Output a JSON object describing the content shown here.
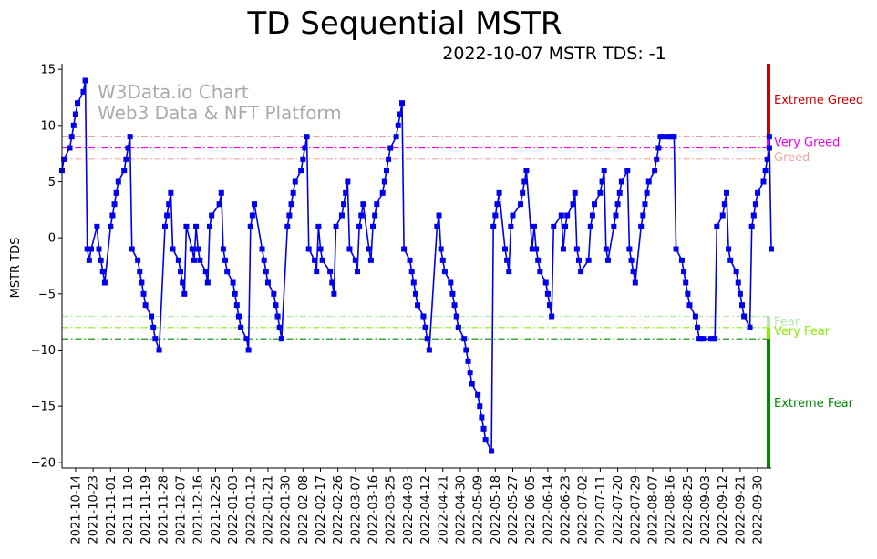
{
  "chart_data": {
    "type": "line",
    "title": "TD Sequential MSTR",
    "subtitle": "2022-10-07 MSTR TDS: -1",
    "ylabel": "MSTR TDS",
    "xlabel": "",
    "ylim": [
      -20.5,
      15.5
    ],
    "yticks": [
      15,
      10,
      5,
      0,
      -5,
      -10,
      -15,
      -20
    ],
    "ytick_labels": [
      "15",
      "10",
      "5",
      "0",
      "−5",
      "−10",
      "−15",
      "−20"
    ],
    "xlim": [
      "2021-10-07",
      "2022-10-07"
    ],
    "xtick_labels": [
      "2021-10-14",
      "2021-10-23",
      "2021-11-01",
      "2021-11-10",
      "2021-11-19",
      "2021-11-28",
      "2021-12-07",
      "2021-12-16",
      "2021-12-25",
      "2022-01-03",
      "2022-01-12",
      "2022-01-21",
      "2022-01-30",
      "2022-02-08",
      "2022-02-17",
      "2022-02-26",
      "2022-03-07",
      "2022-03-16",
      "2022-03-25",
      "2022-04-03",
      "2022-04-12",
      "2022-04-21",
      "2022-04-30",
      "2022-05-09",
      "2022-05-18",
      "2022-05-27",
      "2022-06-05",
      "2022-06-14",
      "2022-06-23",
      "2022-07-02",
      "2022-07-11",
      "2022-07-20",
      "2022-07-29",
      "2022-08-07",
      "2022-08-16",
      "2022-08-25",
      "2022-09-03",
      "2022-09-12",
      "2022-09-21",
      "2022-09-30"
    ],
    "watermark": [
      "W3Data.io Chart",
      "Web3 Data & NFT Platform"
    ],
    "grid": false,
    "series": [
      {
        "color": "#0000ee",
        "marker": "square",
        "points": [
          [
            "2021-10-07",
            6
          ],
          [
            "2021-10-08",
            7
          ],
          [
            "2021-10-11",
            8
          ],
          [
            "2021-10-12",
            9
          ],
          [
            "2021-10-13",
            10
          ],
          [
            "2021-10-14",
            11
          ],
          [
            "2021-10-15",
            12
          ],
          [
            "2021-10-18",
            13
          ],
          [
            "2021-10-19",
            14
          ],
          [
            "2021-10-20",
            -1
          ],
          [
            "2021-10-21",
            -2
          ],
          [
            "2021-10-22",
            -1
          ],
          [
            "2021-10-25",
            1
          ],
          [
            "2021-10-26",
            -1
          ],
          [
            "2021-10-27",
            -2
          ],
          [
            "2021-10-28",
            -3
          ],
          [
            "2021-10-29",
            -4
          ],
          [
            "2021-11-01",
            1
          ],
          [
            "2021-11-02",
            2
          ],
          [
            "2021-11-03",
            3
          ],
          [
            "2021-11-04",
            4
          ],
          [
            "2021-11-05",
            5
          ],
          [
            "2021-11-08",
            6
          ],
          [
            "2021-11-09",
            7
          ],
          [
            "2021-11-10",
            8
          ],
          [
            "2021-11-11",
            9
          ],
          [
            "2021-11-12",
            -1
          ],
          [
            "2021-11-15",
            -2
          ],
          [
            "2021-11-16",
            -3
          ],
          [
            "2021-11-17",
            -4
          ],
          [
            "2021-11-18",
            -5
          ],
          [
            "2021-11-19",
            -6
          ],
          [
            "2021-11-22",
            -7
          ],
          [
            "2021-11-23",
            -8
          ],
          [
            "2021-11-24",
            -9
          ],
          [
            "2021-11-26",
            -10
          ],
          [
            "2021-11-29",
            1
          ],
          [
            "2021-11-30",
            2
          ],
          [
            "2021-12-01",
            3
          ],
          [
            "2021-12-02",
            4
          ],
          [
            "2021-12-03",
            -1
          ],
          [
            "2021-12-06",
            -2
          ],
          [
            "2021-12-07",
            -3
          ],
          [
            "2021-12-08",
            -4
          ],
          [
            "2021-12-09",
            -5
          ],
          [
            "2021-12-10",
            1
          ],
          [
            "2021-12-13",
            -1
          ],
          [
            "2021-12-14",
            -2
          ],
          [
            "2021-12-15",
            1
          ],
          [
            "2021-12-16",
            -1
          ],
          [
            "2021-12-17",
            -2
          ],
          [
            "2021-12-20",
            -3
          ],
          [
            "2021-12-21",
            -4
          ],
          [
            "2021-12-22",
            1
          ],
          [
            "2021-12-23",
            2
          ],
          [
            "2021-12-27",
            3
          ],
          [
            "2021-12-28",
            4
          ],
          [
            "2021-12-29",
            -1
          ],
          [
            "2021-12-30",
            -2
          ],
          [
            "2021-12-31",
            -3
          ],
          [
            "2022-01-03",
            -4
          ],
          [
            "2022-01-04",
            -5
          ],
          [
            "2022-01-05",
            -6
          ],
          [
            "2022-01-06",
            -7
          ],
          [
            "2022-01-07",
            -8
          ],
          [
            "2022-01-10",
            -9
          ],
          [
            "2022-01-11",
            -10
          ],
          [
            "2022-01-12",
            1
          ],
          [
            "2022-01-13",
            2
          ],
          [
            "2022-01-14",
            3
          ],
          [
            "2022-01-18",
            -1
          ],
          [
            "2022-01-19",
            -2
          ],
          [
            "2022-01-20",
            -3
          ],
          [
            "2022-01-21",
            -4
          ],
          [
            "2022-01-24",
            -5
          ],
          [
            "2022-01-25",
            -6
          ],
          [
            "2022-01-26",
            -7
          ],
          [
            "2022-01-27",
            -8
          ],
          [
            "2022-01-28",
            -9
          ],
          [
            "2022-01-31",
            1
          ],
          [
            "2022-02-01",
            2
          ],
          [
            "2022-02-02",
            3
          ],
          [
            "2022-02-03",
            4
          ],
          [
            "2022-02-04",
            5
          ],
          [
            "2022-02-07",
            6
          ],
          [
            "2022-02-08",
            7
          ],
          [
            "2022-02-09",
            8
          ],
          [
            "2022-02-10",
            9
          ],
          [
            "2022-02-11",
            -1
          ],
          [
            "2022-02-14",
            -2
          ],
          [
            "2022-02-15",
            -3
          ],
          [
            "2022-02-16",
            1
          ],
          [
            "2022-02-17",
            -1
          ],
          [
            "2022-02-18",
            -2
          ],
          [
            "2022-02-22",
            -3
          ],
          [
            "2022-02-23",
            -4
          ],
          [
            "2022-02-24",
            -5
          ],
          [
            "2022-02-25",
            1
          ],
          [
            "2022-02-28",
            2
          ],
          [
            "2022-03-01",
            3
          ],
          [
            "2022-03-02",
            4
          ],
          [
            "2022-03-03",
            5
          ],
          [
            "2022-03-04",
            -1
          ],
          [
            "2022-03-07",
            -2
          ],
          [
            "2022-03-08",
            -3
          ],
          [
            "2022-03-09",
            1
          ],
          [
            "2022-03-10",
            2
          ],
          [
            "2022-03-11",
            3
          ],
          [
            "2022-03-14",
            -1
          ],
          [
            "2022-03-15",
            -2
          ],
          [
            "2022-03-16",
            1
          ],
          [
            "2022-03-17",
            2
          ],
          [
            "2022-03-18",
            3
          ],
          [
            "2022-03-21",
            4
          ],
          [
            "2022-03-22",
            5
          ],
          [
            "2022-03-23",
            6
          ],
          [
            "2022-03-24",
            7
          ],
          [
            "2022-03-25",
            8
          ],
          [
            "2022-03-28",
            9
          ],
          [
            "2022-03-29",
            10
          ],
          [
            "2022-03-30",
            11
          ],
          [
            "2022-03-31",
            12
          ],
          [
            "2022-04-01",
            -1
          ],
          [
            "2022-04-04",
            -2
          ],
          [
            "2022-04-05",
            -3
          ],
          [
            "2022-04-06",
            -4
          ],
          [
            "2022-04-07",
            -5
          ],
          [
            "2022-04-08",
            -6
          ],
          [
            "2022-04-11",
            -7
          ],
          [
            "2022-04-12",
            -8
          ],
          [
            "2022-04-13",
            -9
          ],
          [
            "2022-04-14",
            -10
          ],
          [
            "2022-04-18",
            1
          ],
          [
            "2022-04-19",
            2
          ],
          [
            "2022-04-20",
            -1
          ],
          [
            "2022-04-21",
            -2
          ],
          [
            "2022-04-22",
            -3
          ],
          [
            "2022-04-25",
            -4
          ],
          [
            "2022-04-26",
            -5
          ],
          [
            "2022-04-27",
            -6
          ],
          [
            "2022-04-28",
            -7
          ],
          [
            "2022-04-29",
            -8
          ],
          [
            "2022-05-02",
            -9
          ],
          [
            "2022-05-03",
            -10
          ],
          [
            "2022-05-04",
            -11
          ],
          [
            "2022-05-05",
            -12
          ],
          [
            "2022-05-06",
            -13
          ],
          [
            "2022-05-09",
            -14
          ],
          [
            "2022-05-10",
            -15
          ],
          [
            "2022-05-11",
            -16
          ],
          [
            "2022-05-12",
            -17
          ],
          [
            "2022-05-13",
            -18
          ],
          [
            "2022-05-16",
            -19
          ],
          [
            "2022-05-17",
            1
          ],
          [
            "2022-05-18",
            2
          ],
          [
            "2022-05-19",
            3
          ],
          [
            "2022-05-20",
            4
          ],
          [
            "2022-05-23",
            -1
          ],
          [
            "2022-05-24",
            -2
          ],
          [
            "2022-05-25",
            -3
          ],
          [
            "2022-05-26",
            1
          ],
          [
            "2022-05-27",
            2
          ],
          [
            "2022-05-31",
            3
          ],
          [
            "2022-06-01",
            4
          ],
          [
            "2022-06-02",
            5
          ],
          [
            "2022-06-03",
            6
          ],
          [
            "2022-06-06",
            -1
          ],
          [
            "2022-06-07",
            1
          ],
          [
            "2022-06-08",
            -1
          ],
          [
            "2022-06-09",
            -2
          ],
          [
            "2022-06-10",
            -3
          ],
          [
            "2022-06-13",
            -4
          ],
          [
            "2022-06-14",
            -5
          ],
          [
            "2022-06-15",
            -6
          ],
          [
            "2022-06-16",
            -7
          ],
          [
            "2022-06-17",
            1
          ],
          [
            "2022-06-21",
            2
          ],
          [
            "2022-06-22",
            -1
          ],
          [
            "2022-06-23",
            1
          ],
          [
            "2022-06-24",
            2
          ],
          [
            "2022-06-27",
            3
          ],
          [
            "2022-06-28",
            4
          ],
          [
            "2022-06-29",
            -1
          ],
          [
            "2022-06-30",
            -2
          ],
          [
            "2022-07-01",
            -3
          ],
          [
            "2022-07-05",
            -2
          ],
          [
            "2022-07-06",
            1
          ],
          [
            "2022-07-07",
            2
          ],
          [
            "2022-07-08",
            3
          ],
          [
            "2022-07-11",
            4
          ],
          [
            "2022-07-12",
            5
          ],
          [
            "2022-07-13",
            6
          ],
          [
            "2022-07-14",
            -1
          ],
          [
            "2022-07-15",
            -2
          ],
          [
            "2022-07-18",
            1
          ],
          [
            "2022-07-19",
            2
          ],
          [
            "2022-07-20",
            3
          ],
          [
            "2022-07-21",
            4
          ],
          [
            "2022-07-22",
            5
          ],
          [
            "2022-07-25",
            6
          ],
          [
            "2022-07-26",
            -1
          ],
          [
            "2022-07-27",
            -2
          ],
          [
            "2022-07-28",
            -3
          ],
          [
            "2022-07-29",
            -4
          ],
          [
            "2022-08-01",
            1
          ],
          [
            "2022-08-02",
            2
          ],
          [
            "2022-08-03",
            3
          ],
          [
            "2022-08-04",
            4
          ],
          [
            "2022-08-05",
            5
          ],
          [
            "2022-08-08",
            6
          ],
          [
            "2022-08-09",
            7
          ],
          [
            "2022-08-10",
            8
          ],
          [
            "2022-08-11",
            9
          ],
          [
            "2022-08-12",
            9
          ],
          [
            "2022-08-15",
            9
          ],
          [
            "2022-08-16",
            9
          ],
          [
            "2022-08-17",
            9
          ],
          [
            "2022-08-18",
            9
          ],
          [
            "2022-08-19",
            -1
          ],
          [
            "2022-08-22",
            -2
          ],
          [
            "2022-08-23",
            -3
          ],
          [
            "2022-08-24",
            -4
          ],
          [
            "2022-08-25",
            -5
          ],
          [
            "2022-08-26",
            -6
          ],
          [
            "2022-08-29",
            -7
          ],
          [
            "2022-08-30",
            -8
          ],
          [
            "2022-08-31",
            -9
          ],
          [
            "2022-09-01",
            -9
          ],
          [
            "2022-09-02",
            -9
          ],
          [
            "2022-09-06",
            -9
          ],
          [
            "2022-09-07",
            -9
          ],
          [
            "2022-09-08",
            -9
          ],
          [
            "2022-09-09",
            1
          ],
          [
            "2022-09-12",
            2
          ],
          [
            "2022-09-13",
            3
          ],
          [
            "2022-09-14",
            4
          ],
          [
            "2022-09-15",
            -1
          ],
          [
            "2022-09-16",
            -2
          ],
          [
            "2022-09-19",
            -3
          ],
          [
            "2022-09-20",
            -4
          ],
          [
            "2022-09-21",
            -5
          ],
          [
            "2022-09-22",
            -6
          ],
          [
            "2022-09-23",
            -7
          ],
          [
            "2022-09-26",
            -8
          ],
          [
            "2022-09-27",
            1
          ],
          [
            "2022-09-28",
            2
          ],
          [
            "2022-09-29",
            3
          ],
          [
            "2022-09-30",
            4
          ],
          [
            "2022-10-03",
            5
          ],
          [
            "2022-10-04",
            6
          ],
          [
            "2022-10-05",
            7
          ],
          [
            "2022-10-06",
            8
          ],
          [
            "2022-10-06",
            9
          ],
          [
            "2022-10-07",
            -1
          ]
        ]
      }
    ],
    "reference_lines": [
      {
        "y": 9,
        "color": "#cc0000",
        "style": "dashdot"
      },
      {
        "y": 8,
        "color": "#ee00ee",
        "style": "dashdot"
      },
      {
        "y": 7,
        "color": "#f4a6a0",
        "style": "dashdot"
      },
      {
        "y": -7,
        "color": "#b8e6b0",
        "style": "dashdot"
      },
      {
        "y": -8,
        "color": "#88ee00",
        "style": "dashdot"
      },
      {
        "y": -9,
        "color": "#008800",
        "style": "dashdot"
      }
    ],
    "zones": [
      {
        "label": "Extreme Greed",
        "from": 9,
        "to": 15.5,
        "color": "#cc0000"
      },
      {
        "label": "Very Greed",
        "from": 8,
        "to": 9,
        "color": "#ee00ee"
      },
      {
        "label": "Greed",
        "from": 7,
        "to": 8,
        "color": "#f4a6a0"
      },
      {
        "label": "Fear",
        "from": -8,
        "to": -7,
        "color": "#b8e6b0"
      },
      {
        "label": "Very Fear",
        "from": -9,
        "to": -8,
        "color": "#88ee00"
      },
      {
        "label": "Extreme Fear",
        "from": -20.5,
        "to": -9,
        "color": "#008800"
      }
    ]
  }
}
